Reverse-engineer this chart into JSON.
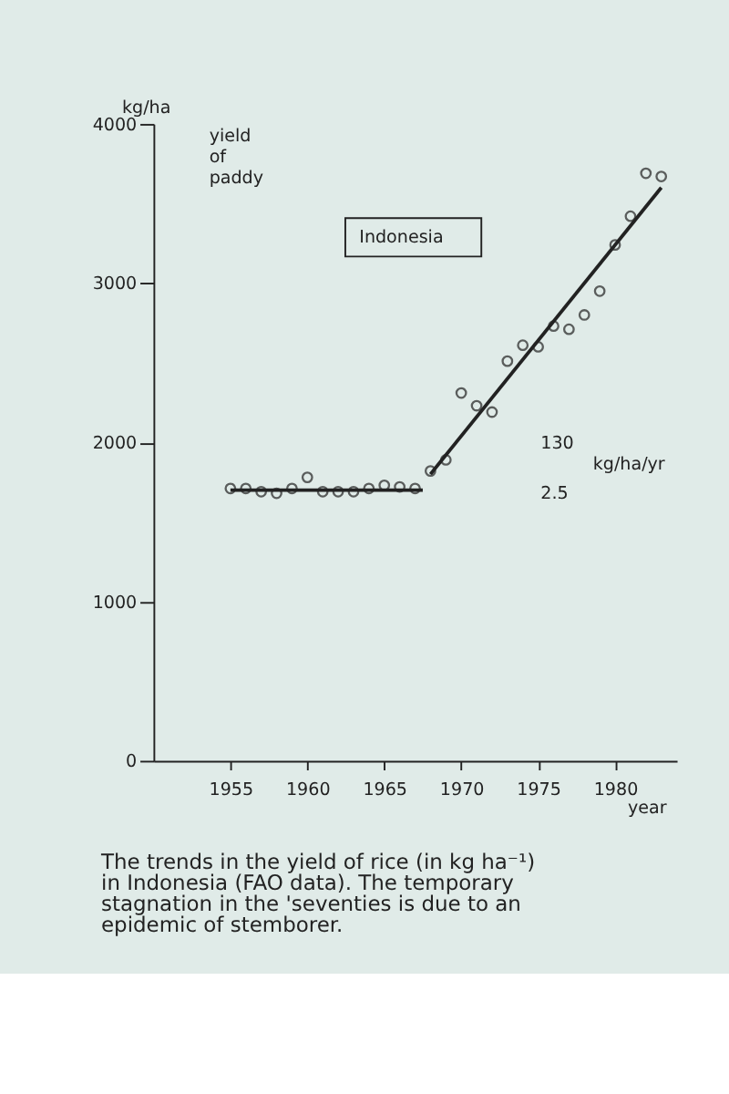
{
  "chart_data": {
    "type": "scatter",
    "ylabel": "kg/ha",
    "xlabel": "year",
    "xlim": [
      1950,
      1984
    ],
    "xticks": [
      1955,
      1960,
      1965,
      1970,
      1975,
      1980
    ],
    "ylim": [
      0,
      4000
    ],
    "yticks": [
      0,
      1000,
      2000,
      3000,
      4000
    ],
    "grid": false,
    "series": [
      {
        "marker": "circle",
        "color": "#222222",
        "x": [
          1955,
          1956,
          1957,
          1958,
          1959,
          1960,
          1961,
          1962,
          1963,
          1964,
          1965,
          1966,
          1967,
          1968,
          1969,
          1970,
          1971,
          1972,
          1973,
          1974,
          1975,
          1976,
          1977,
          1978,
          1979,
          1980,
          1981,
          1982,
          1983
        ],
        "values": [
          1710,
          1710,
          1690,
          1680,
          1710,
          1780,
          1690,
          1690,
          1690,
          1710,
          1730,
          1720,
          1710,
          1820,
          1890,
          2310,
          2230,
          2190,
          2510,
          2610,
          2600,
          2730,
          2710,
          2800,
          2950,
          3240,
          3420,
          3690,
          3670
        ]
      },
      {
        "type": "line",
        "line_style": "solid",
        "color": "#222222",
        "x": [
          1955,
          1967.5
        ],
        "values": [
          1700,
          1700
        ]
      },
      {
        "type": "line",
        "line_style": "solid",
        "color": "#222222",
        "x": [
          1968,
          1983
        ],
        "values": [
          1800,
          3600
        ]
      }
    ],
    "annotations": [
      "yield of paddy",
      "Indonesia",
      "130",
      "kg/ha/yr",
      "2.5",
      "The trends in the yield of rice (in kg ha⁻¹) in Indonesia (FAO data). The temporary stagnation in the 'seventies is due to an epidemic of stemborer."
    ]
  }
}
